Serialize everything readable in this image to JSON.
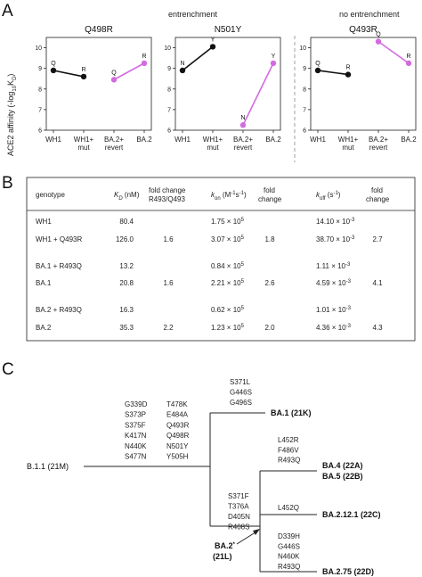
{
  "panel_labels": {
    "a": "A",
    "b": "B",
    "c": "C"
  },
  "panel_a": {
    "group_headers": {
      "entrenchment": "entrenchment",
      "no_entrenchment": "no entrenchment"
    },
    "ylabel_main": "ACE2 affinity (-log",
    "ylabel_sub": "10",
    "ylabel_k": "K",
    "ylabel_ksub": "D",
    "ylabel_end": ")",
    "colors": {
      "black_series": "#111111",
      "magenta_series": "#d36be0"
    },
    "xtick_labels": {
      "wh1": "WH1",
      "wh1_mut_1": "WH1+",
      "wh1_mut_2": "mut",
      "ba2_revert_1": "BA.2+",
      "ba2_revert_2": "revert",
      "ba2": "BA.2"
    },
    "chart_data": [
      {
        "type": "line",
        "title": "Q498R",
        "ylim": [
          6,
          10.5
        ],
        "yticks": [
          "6",
          "7",
          "8",
          "9",
          "10"
        ],
        "categories": [
          "WH1",
          "WH1+ mut",
          "BA.2+ revert",
          "BA.2"
        ],
        "series": [
          {
            "color": "#111111",
            "x": [
              "WH1",
              "WH1+ mut"
            ],
            "values": [
              8.9,
              8.6
            ],
            "point_labels": [
              "Q",
              "R"
            ]
          },
          {
            "color": "#d36be0",
            "x": [
              "BA.2+ revert",
              "BA.2"
            ],
            "values": [
              8.45,
              9.25
            ],
            "point_labels": [
              "Q",
              "R"
            ]
          }
        ]
      },
      {
        "type": "line",
        "title": "N501Y",
        "ylim": [
          6,
          10.5
        ],
        "yticks": [
          "6",
          "7",
          "8",
          "9",
          "10"
        ],
        "categories": [
          "WH1",
          "WH1+ mut",
          "BA.2+ revert",
          "BA.2"
        ],
        "series": [
          {
            "color": "#111111",
            "x": [
              "WH1",
              "WH1+ mut"
            ],
            "values": [
              8.9,
              10.05
            ],
            "point_labels": [
              "N",
              "Y"
            ]
          },
          {
            "color": "#d36be0",
            "x": [
              "BA.2+ revert",
              "BA.2"
            ],
            "values": [
              6.25,
              9.25
            ],
            "point_labels": [
              "N",
              "Y"
            ]
          }
        ]
      },
      {
        "type": "line",
        "title": "Q493R",
        "ylim": [
          6,
          10.5
        ],
        "yticks": [
          "6",
          "7",
          "8",
          "9",
          "10"
        ],
        "categories": [
          "WH1",
          "WH1+ mut",
          "BA.2+ revert",
          "BA.2"
        ],
        "series": [
          {
            "color": "#111111",
            "x": [
              "WH1",
              "WH1+ mut"
            ],
            "values": [
              8.9,
              8.7
            ],
            "point_labels": [
              "Q",
              "R"
            ]
          },
          {
            "color": "#d36be0",
            "x": [
              "BA.2+ revert",
              "BA.2"
            ],
            "values": [
              10.3,
              9.25
            ],
            "point_labels": [
              "Q",
              "R"
            ]
          }
        ]
      }
    ]
  },
  "panel_b": {
    "headers": {
      "genotype": "genotype",
      "kd": "K",
      "kd_sub": "D",
      "kd_unit": " (nM)",
      "fold1_line1": "fold change",
      "fold1_line2": "R493/Q493",
      "kon": "k",
      "kon_sub": "on",
      "kon_unit": " (M",
      "kon_exp": "-1",
      "kon_unit2": "s",
      "kon_exp2": "-1",
      "kon_close": ")",
      "fold2_line1": "fold",
      "fold2_line2": "change",
      "koff": "k",
      "koff_sub": "off",
      "koff_unit": " (s",
      "koff_exp": "-1",
      "koff_close": ")",
      "fold3_line1": "fold",
      "fold3_line2": "change"
    },
    "rows": [
      {
        "genotype": "WH1",
        "kd": "80.4",
        "fold1": "",
        "kon_base": "1.75 × 10",
        "kon_exp": "5",
        "fold2": "",
        "koff_base": "14.10 × 10",
        "koff_exp": "-3",
        "fold3": ""
      },
      {
        "genotype": "WH1 + Q493R",
        "kd": "126.0",
        "fold1": "1.6",
        "kon_base": "3.07 × 10",
        "kon_exp": "5",
        "fold2": "1.8",
        "koff_base": "38.70 × 10",
        "koff_exp": "-3",
        "fold3": "2.7"
      },
      {
        "genotype": "BA.1 + R493Q",
        "kd": "13.2",
        "fold1": "",
        "kon_base": "0.84 × 10",
        "kon_exp": "5",
        "fold2": "",
        "koff_base": "1.11 × 10",
        "koff_exp": "-3",
        "fold3": ""
      },
      {
        "genotype": "BA.1",
        "kd": "20.8",
        "fold1": "1.6",
        "kon_base": "2.21 × 10",
        "kon_exp": "5",
        "fold2": "2.6",
        "koff_base": "4.59 × 10",
        "koff_exp": "-3",
        "fold3": "4.1"
      },
      {
        "genotype": "BA.2 + R493Q",
        "kd": "16.3",
        "fold1": "",
        "kon_base": "0.62 × 10",
        "kon_exp": "5",
        "fold2": "",
        "koff_base": "1.01 × 10",
        "koff_exp": "-3",
        "fold3": ""
      },
      {
        "genotype": "BA.2",
        "kd": "35.3",
        "fold1": "2.2",
        "kon_base": "1.23 × 10",
        "kon_exp": "5",
        "fold2": "2.0",
        "koff_base": "4.36 × 10",
        "koff_exp": "-3",
        "fold3": "4.3"
      }
    ]
  },
  "panel_c": {
    "root": "B.1.1 (21M)",
    "leaves": {
      "ba1": "BA.1 (21K)",
      "ba4": "BA.4 (22A)",
      "ba5": "BA.5 (22B)",
      "ba2121": "BA.2.12.1 (22C)",
      "ba2_line1": "BA.2",
      "ba2_star": "*",
      "ba2_line2": "(21L)",
      "ba275": "BA.2.75 (22D)"
    },
    "blue_color": "#3d8ec9",
    "trunk_mutations_col1": [
      "G339D",
      "S373P",
      "S375F",
      "K417N",
      "N440K",
      "S477N"
    ],
    "trunk_mutations_col2": [
      "T478K",
      "E484A",
      "Q493R",
      "Q498R",
      "N501Y",
      "Y505H"
    ],
    "ba1_mutations": [
      "S371L",
      "G446S",
      "G496S"
    ],
    "ba2_mutations": [
      "S371F",
      "T376A",
      "D405N",
      "R408S"
    ],
    "ba45_mutations": [
      {
        "text": "L452R",
        "blue": false
      },
      {
        "text": "F486V",
        "blue": false
      },
      {
        "text": "R493Q",
        "blue": true
      }
    ],
    "ba2121_mutations": [
      "L452Q"
    ],
    "ba275_mutations": [
      {
        "text": "D339H",
        "blue": true
      },
      {
        "text": "G446S",
        "blue": false
      },
      {
        "text": "N460K",
        "blue": false
      },
      {
        "text": "R493Q",
        "blue": true
      }
    ]
  }
}
